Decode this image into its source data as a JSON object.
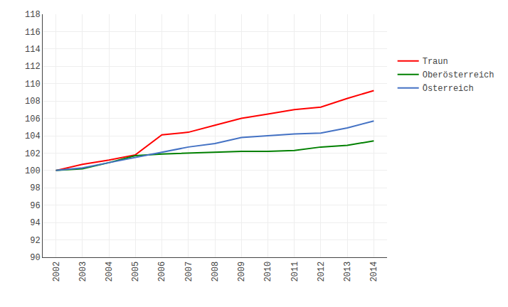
{
  "chart_data": {
    "type": "line",
    "x": [
      2002,
      2003,
      2004,
      2005,
      2006,
      2007,
      2008,
      2009,
      2010,
      2011,
      2012,
      2013,
      2014
    ],
    "series": [
      {
        "name": "Traun",
        "color": "#ff0000",
        "values": [
          100.0,
          100.7,
          101.2,
          101.8,
          104.1,
          104.4,
          105.2,
          106.0,
          106.5,
          107.0,
          107.3,
          108.3,
          109.2
        ]
      },
      {
        "name": "Oberösterreich",
        "color": "#008000",
        "values": [
          100.0,
          100.2,
          100.9,
          101.7,
          101.9,
          102.0,
          102.1,
          102.2,
          102.2,
          102.3,
          102.7,
          102.9,
          103.4
        ]
      },
      {
        "name": "Österreich",
        "color": "#4472c4",
        "values": [
          100.0,
          100.3,
          100.9,
          101.5,
          102.1,
          102.7,
          103.1,
          103.8,
          104.0,
          104.2,
          104.3,
          104.9,
          105.7
        ]
      }
    ],
    "xlim": [
      2001.5,
      2014.5
    ],
    "xticks": [
      2002,
      2003,
      2004,
      2005,
      2006,
      2007,
      2008,
      2009,
      2010,
      2011,
      2012,
      2013,
      2014
    ],
    "ylim": [
      90,
      118
    ],
    "yticks": [
      90,
      92,
      94,
      96,
      98,
      100,
      102,
      104,
      106,
      108,
      110,
      112,
      114,
      116,
      118
    ],
    "grid": true,
    "legend": "right"
  }
}
